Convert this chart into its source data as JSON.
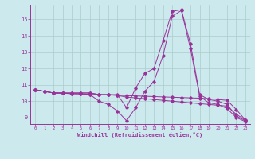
{
  "xlabel": "Windchill (Refroidissement éolien,°C)",
  "background_color": "#cce9ee",
  "grid_color": "#aacccc",
  "line_color": "#993399",
  "xlim": [
    -0.5,
    23.5
  ],
  "ylim": [
    8.6,
    15.9
  ],
  "xticks": [
    0,
    1,
    2,
    3,
    4,
    5,
    6,
    7,
    8,
    9,
    10,
    11,
    12,
    13,
    14,
    15,
    16,
    17,
    18,
    19,
    20,
    21,
    22,
    23
  ],
  "yticks": [
    9,
    10,
    11,
    12,
    13,
    14,
    15
  ],
  "lines": [
    [
      10.7,
      10.6,
      10.5,
      10.5,
      10.5,
      10.5,
      10.5,
      10.4,
      10.4,
      10.4,
      9.6,
      10.8,
      11.7,
      12.0,
      13.7,
      15.5,
      15.6,
      13.5,
      10.4,
      10.1,
      10.0,
      9.8,
      9.1,
      8.8
    ],
    [
      10.7,
      10.6,
      10.5,
      10.5,
      10.5,
      10.5,
      10.5,
      10.4,
      10.4,
      10.35,
      10.25,
      10.2,
      10.15,
      10.1,
      10.05,
      10.0,
      9.95,
      9.9,
      9.85,
      9.8,
      9.75,
      9.7,
      9.2,
      8.85
    ],
    [
      10.7,
      10.6,
      10.5,
      10.5,
      10.45,
      10.45,
      10.4,
      10.0,
      9.8,
      9.4,
      8.8,
      9.6,
      10.6,
      11.2,
      12.8,
      15.2,
      15.55,
      13.2,
      10.3,
      9.9,
      9.8,
      9.55,
      9.0,
      8.75
    ],
    [
      10.7,
      10.6,
      10.5,
      10.48,
      10.46,
      10.44,
      10.42,
      10.4,
      10.38,
      10.36,
      10.34,
      10.32,
      10.3,
      10.28,
      10.26,
      10.24,
      10.22,
      10.2,
      10.18,
      10.15,
      10.1,
      10.05,
      9.5,
      8.85
    ]
  ]
}
